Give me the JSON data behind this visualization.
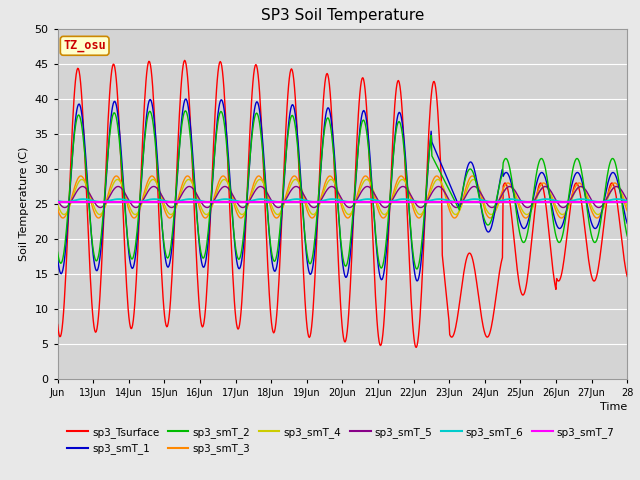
{
  "title": "SP3 Soil Temperature",
  "ylabel": "Soil Temperature (C)",
  "xlabel": "Time",
  "ylim": [
    0,
    50
  ],
  "fig_facecolor": "#e8e8e8",
  "plot_facecolor": "#d4d4d4",
  "tz_label": "TZ_osu",
  "x_start": 12,
  "x_end": 28,
  "x_ticks": [
    12,
    13,
    14,
    15,
    16,
    17,
    18,
    19,
    20,
    21,
    22,
    23,
    24,
    25,
    26,
    27,
    28
  ],
  "x_tick_labels": [
    "Jun",
    "13Jun",
    "14Jun",
    "15Jun",
    "16Jun",
    "17Jun",
    "18Jun",
    "19Jun",
    "20Jun",
    "21Jun",
    "22Jun",
    "23Jun",
    "24Jun",
    "25Jun",
    "26Jun",
    "27Jun",
    "28"
  ],
  "yticks": [
    0,
    5,
    10,
    15,
    20,
    25,
    30,
    35,
    40,
    45,
    50
  ],
  "series_colors": {
    "sp3_Tsurface": "#ff0000",
    "sp3_smT_1": "#0000cc",
    "sp3_smT_2": "#00bb00",
    "sp3_smT_3": "#ff8800",
    "sp3_smT_4": "#cccc00",
    "sp3_smT_5": "#880088",
    "sp3_smT_6": "#00cccc",
    "sp3_smT_7": "#ff00ff"
  }
}
